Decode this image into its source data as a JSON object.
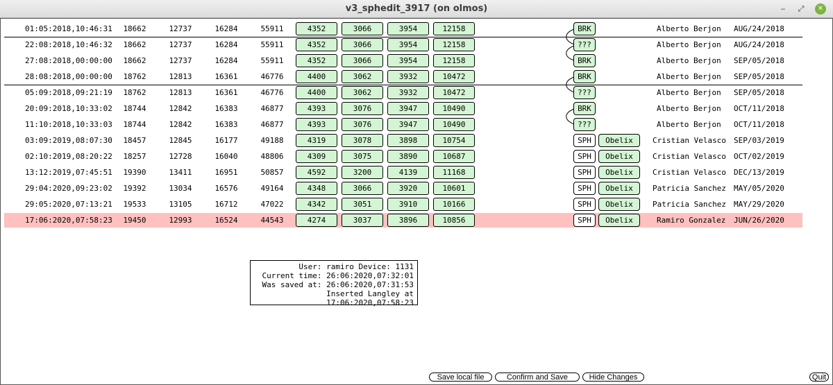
{
  "window": {
    "title": "v3_sphedit_3917 (on olmos)",
    "min_icon": "minimize-icon",
    "max_icon": "maximize-icon",
    "close_icon": "close-icon",
    "min_glyph": "‒",
    "max_glyph": "⤢",
    "close_glyph": "✕"
  },
  "rows": [
    {
      "ts": "01:05:2018,10:46:31",
      "a": "18662",
      "b": "12737",
      "c": "16284",
      "d": "55911",
      "v1": "4352",
      "v2": "3066",
      "v3": "3954",
      "v4": "12158",
      "tag": "BRK",
      "tag2": "",
      "user": "Alberto Berjon",
      "date": "AUG/24/2018"
    },
    {
      "ts": "22:08:2018,10:46:32",
      "a": "18662",
      "b": "12737",
      "c": "16284",
      "d": "55911",
      "v1": "4352",
      "v2": "3066",
      "v3": "3954",
      "v4": "12158",
      "tag": "???",
      "tag2": "",
      "user": "Alberto Berjon",
      "date": "AUG/24/2018"
    },
    {
      "ts": "27:08:2018,00:00:00",
      "a": "18662",
      "b": "12737",
      "c": "16284",
      "d": "55911",
      "v1": "4352",
      "v2": "3066",
      "v3": "3954",
      "v4": "12158",
      "tag": "BRK",
      "tag2": "",
      "user": "Alberto Berjon",
      "date": "SEP/05/2018"
    },
    {
      "ts": "28:08:2018,00:00:00",
      "a": "18762",
      "b": "12813",
      "c": "16361",
      "d": "46776",
      "v1": "4400",
      "v2": "3062",
      "v3": "3932",
      "v4": "10472",
      "tag": "BRK",
      "tag2": "",
      "user": "Alberto Berjon",
      "date": "SEP/05/2018"
    },
    {
      "ts": "05:09:2018,09:21:19",
      "a": "18762",
      "b": "12813",
      "c": "16361",
      "d": "46776",
      "v1": "4400",
      "v2": "3062",
      "v3": "3932",
      "v4": "10472",
      "tag": "???",
      "tag2": "",
      "user": "Alberto Berjon",
      "date": "SEP/05/2018"
    },
    {
      "ts": "20:09:2018,10:33:02",
      "a": "18744",
      "b": "12842",
      "c": "16383",
      "d": "46877",
      "v1": "4393",
      "v2": "3076",
      "v3": "3947",
      "v4": "10490",
      "tag": "BRK",
      "tag2": "",
      "user": "Alberto Berjon",
      "date": "OCT/11/2018"
    },
    {
      "ts": "11:10:2018,10:33:03",
      "a": "18744",
      "b": "12842",
      "c": "16383",
      "d": "46877",
      "v1": "4393",
      "v2": "3076",
      "v3": "3947",
      "v4": "10490",
      "tag": "???",
      "tag2": "",
      "user": "Alberto Berjon",
      "date": "OCT/11/2018"
    },
    {
      "ts": "03:09:2019,08:07:30",
      "a": "18457",
      "b": "12845",
      "c": "16177",
      "d": "49188",
      "v1": "4319",
      "v2": "3078",
      "v3": "3898",
      "v4": "10754",
      "tag": "SPH",
      "tag2": "Obelix",
      "user": "Cristian Velasco",
      "date": "SEP/03/2019"
    },
    {
      "ts": "02:10:2019,08:20:22",
      "a": "18257",
      "b": "12728",
      "c": "16040",
      "d": "48806",
      "v1": "4309",
      "v2": "3075",
      "v3": "3890",
      "v4": "10687",
      "tag": "SPH",
      "tag2": "Obelix",
      "user": "Cristian Velasco",
      "date": "OCT/02/2019"
    },
    {
      "ts": "13:12:2019,07:45:51",
      "a": "19390",
      "b": "13411",
      "c": "16951",
      "d": "50857",
      "v1": "4592",
      "v2": "3200",
      "v3": "4139",
      "v4": "11168",
      "tag": "SPH",
      "tag2": "Obelix",
      "user": "Cristian Velasco",
      "date": "DEC/13/2019"
    },
    {
      "ts": "29:04:2020,09:23:02",
      "a": "19392",
      "b": "13034",
      "c": "16576",
      "d": "49164",
      "v1": "4348",
      "v2": "3066",
      "v3": "3920",
      "v4": "10601",
      "tag": "SPH",
      "tag2": "Obelix",
      "user": "Patricia Sanchez",
      "date": "MAY/05/2020"
    },
    {
      "ts": "29:05:2020,07:13:21",
      "a": "19533",
      "b": "13105",
      "c": "16712",
      "d": "47022",
      "v1": "4342",
      "v2": "3051",
      "v3": "3910",
      "v4": "10166",
      "tag": "SPH",
      "tag2": "Obelix",
      "user": "Patricia Sanchez",
      "date": "MAY/29/2020"
    },
    {
      "ts": "17:06:2020,07:58:23",
      "a": "19450",
      "b": "12993",
      "c": "16524",
      "d": "44543",
      "v1": "4274",
      "v2": "3037",
      "v3": "3896",
      "v4": "10856",
      "tag": "SPH",
      "tag2": "Obelix",
      "user": "Ramiro Gonzalez",
      "date": "JUN/26/2020"
    }
  ],
  "info": {
    "line1": "User: ramiro Device: 1131",
    "line2": "Current time: 26:06:2020,07:32:01",
    "line3": "Was saved at: 26:06:2020,07:31:53",
    "line4": "Inserted Langley at 17:06:2020,07:58:23"
  },
  "buttons": {
    "save_local": "Save local file",
    "confirm_save": "Confirm and Save",
    "hide_changes": "Hide Changes",
    "quit": "Quit"
  },
  "colors": {
    "highlight_row": "#ffc0c0",
    "value_box": "#d4f5d4",
    "close_button": "#7cb342"
  }
}
